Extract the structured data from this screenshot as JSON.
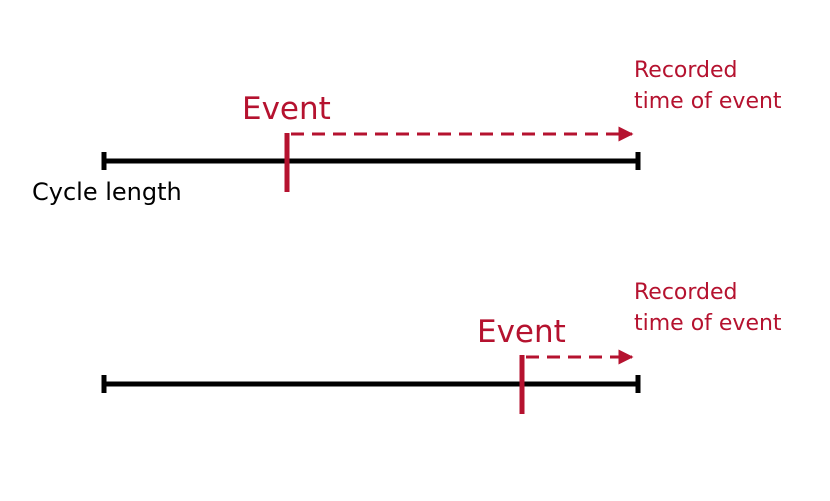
{
  "colors": {
    "timeline": "#000000",
    "event": "#b5122f"
  },
  "top": {
    "event_label": "Event",
    "recorded_line1": "Recorded",
    "recorded_line2": "time of event",
    "cycle_label": "Cycle length"
  },
  "bottom": {
    "event_label": "Event",
    "recorded_line1": "Recorded",
    "recorded_line2": "time of event"
  }
}
